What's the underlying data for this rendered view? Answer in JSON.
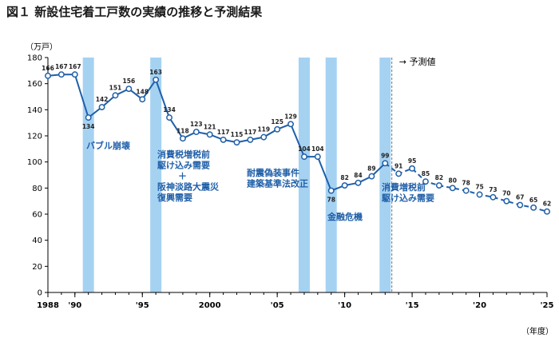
{
  "title": "図１ 新設住宅着工戸数の実績の推移と予測結果",
  "chart_data": {
    "type": "line",
    "title": "図１ 新設住宅着工戸数の実績の推移と予測結果",
    "ylabel": "（万戸）",
    "xlabel": "（年度）",
    "ylim": [
      0,
      180
    ],
    "xlim": [
      1988,
      2025
    ],
    "yticks": [
      0,
      20,
      40,
      60,
      80,
      100,
      120,
      140,
      160,
      180
    ],
    "xticks": [
      {
        "x": 1988,
        "label": "1988"
      },
      {
        "x": 1990,
        "label": "'90"
      },
      {
        "x": 1995,
        "label": "'95"
      },
      {
        "x": 2000,
        "label": "2000"
      },
      {
        "x": 2005,
        "label": "'05"
      },
      {
        "x": 2010,
        "label": "'10"
      },
      {
        "x": 2015,
        "label": "'15"
      },
      {
        "x": 2020,
        "label": "'20"
      },
      {
        "x": 2025,
        "label": "'25"
      }
    ],
    "series": [
      {
        "segment": "actual",
        "x": [
          1988,
          1989,
          1990,
          1991,
          1992,
          1993,
          1994,
          1995,
          1996,
          1997,
          1998,
          1999,
          2000,
          2001,
          2002,
          2003,
          2004,
          2005,
          2006,
          2007,
          2008,
          2009,
          2010,
          2011,
          2012,
          2013
        ],
        "values": [
          166,
          167,
          167,
          134,
          142,
          151,
          156,
          148,
          163,
          134,
          118,
          123,
          121,
          117,
          115,
          117,
          119,
          125,
          129,
          104,
          104,
          78,
          82,
          84,
          89,
          99
        ]
      },
      {
        "segment": "forecast",
        "x": [
          2013,
          2014,
          2015,
          2016,
          2017,
          2018,
          2019,
          2020,
          2021,
          2022,
          2023,
          2024,
          2025
        ],
        "values": [
          99,
          91,
          95,
          85,
          82,
          80,
          78,
          75,
          73,
          70,
          67,
          65,
          62
        ]
      }
    ],
    "shaded_periods": [
      {
        "x": 1991,
        "label": "バブル崩壊"
      },
      {
        "x": 1996,
        "label": "消費税増税前\n駆け込み需要\n＋\n阪神淡路大震災\n復興需要"
      },
      {
        "x": 2007,
        "label": "耐震偽装事件\n建築基準法改正"
      },
      {
        "x": 2009,
        "label": "金融危機"
      },
      {
        "x": 2013,
        "label": "消費増税前\n駆け込み需要"
      }
    ],
    "forecast_divider_x": 2013.5,
    "forecast_label": "→ 予測値",
    "grid": false,
    "colors": {
      "line": "#1f5fa8",
      "band": "#a6d2f2",
      "annotation": "#1f5fa8"
    }
  }
}
